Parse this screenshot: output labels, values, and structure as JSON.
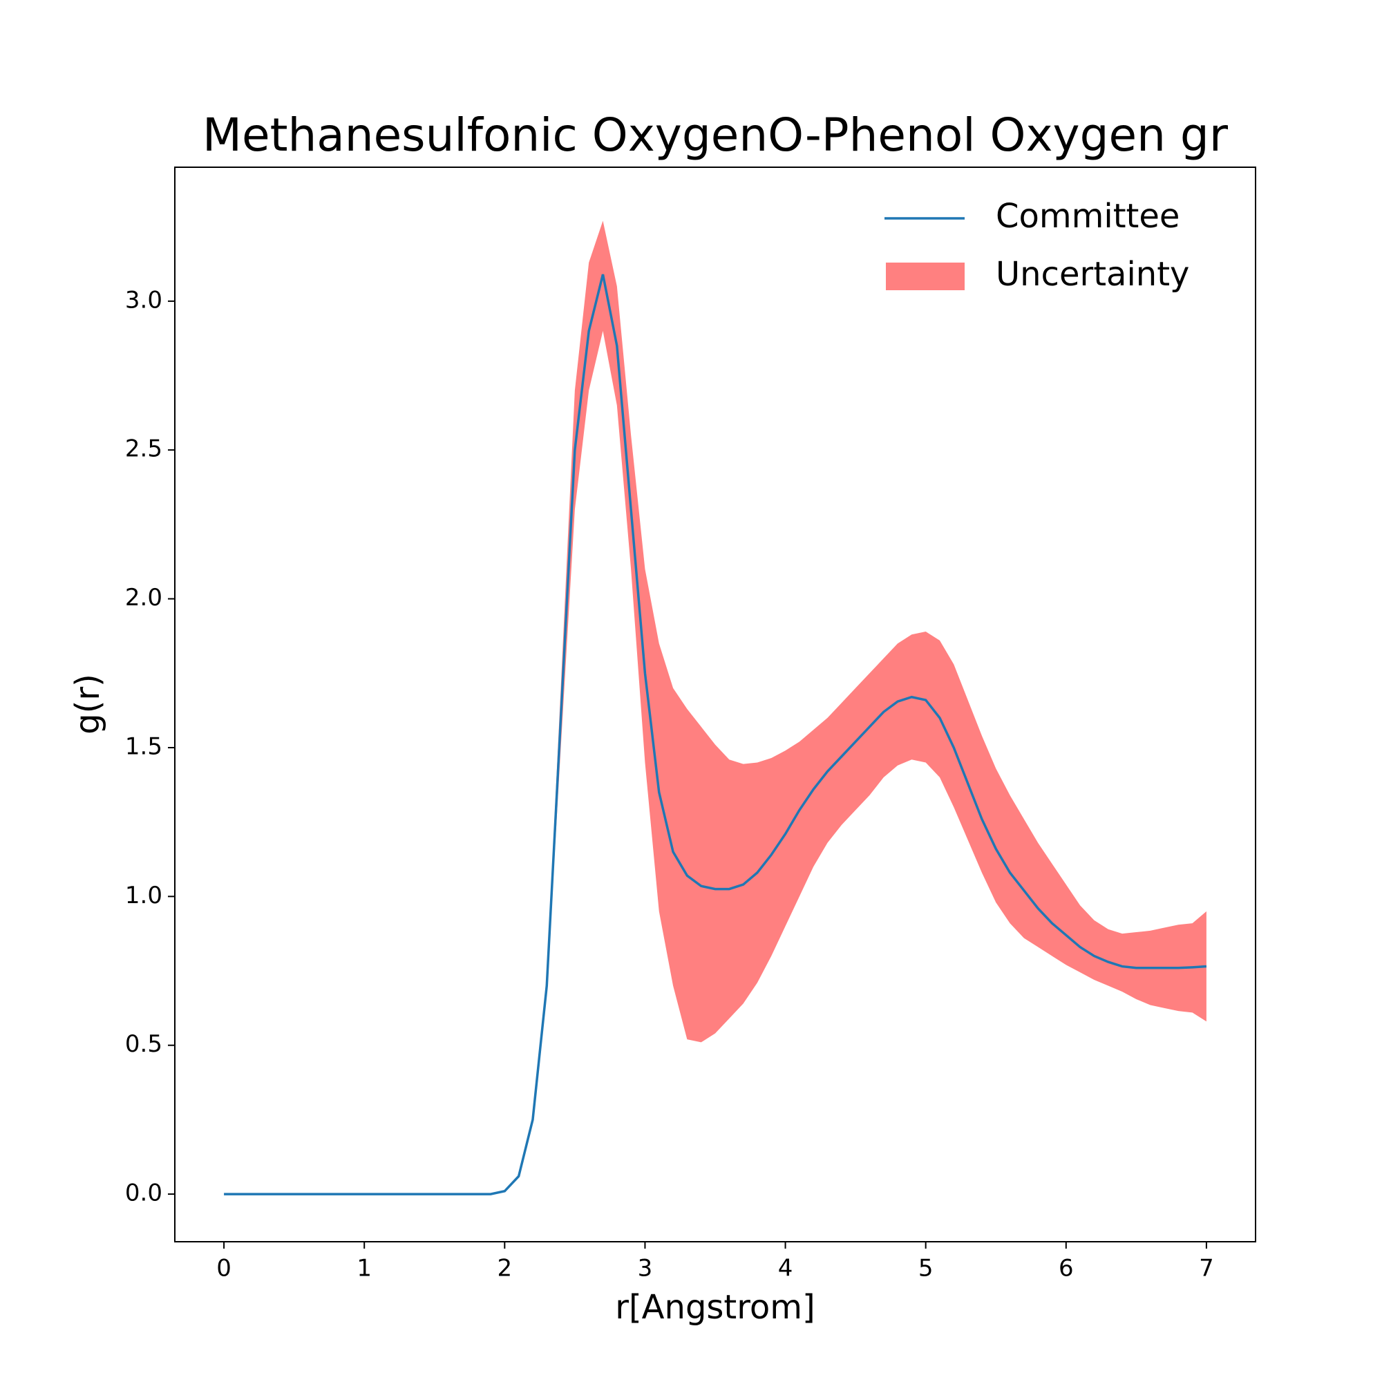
{
  "chart_data": {
    "type": "line",
    "title": "Methanesulfonic OxygenO-Phenol Oxygen gr",
    "x_label": "r[Angstrom]",
    "y_label": "g(r)",
    "x": [
      0,
      0.1,
      0.2,
      0.3,
      0.4,
      0.5,
      0.6,
      0.7,
      0.8,
      0.9,
      1,
      1.1,
      1.2,
      1.3,
      1.4,
      1.5,
      1.6,
      1.7,
      1.8,
      1.9,
      2,
      2.1,
      2.2,
      2.3,
      2.4,
      2.5,
      2.6,
      2.7,
      2.8,
      2.9,
      3,
      3.1,
      3.2,
      3.3,
      3.4,
      3.5,
      3.6,
      3.7,
      3.8,
      3.9,
      4,
      4.1,
      4.2,
      4.3,
      4.4,
      4.5,
      4.6,
      4.7,
      4.8,
      4.9,
      5,
      5.1,
      5.2,
      5.3,
      5.4,
      5.5,
      5.6,
      5.7,
      5.8,
      5.9,
      6,
      6.1,
      6.2,
      6.3,
      6.4,
      6.5,
      6.6,
      6.7,
      6.8,
      6.9,
      7
    ],
    "series": [
      {
        "name": "Committee",
        "color": "#1f77b4",
        "values": [
          0,
          0,
          0,
          0,
          0,
          0,
          0,
          0,
          0,
          0,
          0,
          0,
          0,
          0,
          0,
          0,
          0,
          0,
          0,
          0,
          0.01,
          0.06,
          0.25,
          0.7,
          1.6,
          2.5,
          2.9,
          3.09,
          2.85,
          2.3,
          1.75,
          1.35,
          1.15,
          1.07,
          1.035,
          1.025,
          1.025,
          1.04,
          1.08,
          1.14,
          1.21,
          1.29,
          1.36,
          1.42,
          1.47,
          1.52,
          1.57,
          1.62,
          1.655,
          1.67,
          1.66,
          1.6,
          1.5,
          1.38,
          1.26,
          1.16,
          1.08,
          1.02,
          0.96,
          0.91,
          0.87,
          0.83,
          0.8,
          0.78,
          0.765,
          0.76,
          0.76,
          0.76,
          0.76,
          0.762,
          0.765
        ]
      },
      {
        "name": "Uncertainty",
        "color": "#ff8080",
        "upper": [
          0,
          0,
          0,
          0,
          0,
          0,
          0,
          0,
          0,
          0,
          0,
          0,
          0,
          0,
          0,
          0,
          0,
          0,
          0,
          0,
          0.01,
          0.06,
          0.25,
          0.72,
          1.7,
          2.7,
          3.13,
          3.27,
          3.05,
          2.55,
          2.1,
          1.85,
          1.7,
          1.63,
          1.57,
          1.51,
          1.46,
          1.445,
          1.45,
          1.465,
          1.49,
          1.52,
          1.56,
          1.6,
          1.65,
          1.7,
          1.75,
          1.8,
          1.85,
          1.88,
          1.89,
          1.86,
          1.78,
          1.66,
          1.54,
          1.43,
          1.34,
          1.26,
          1.18,
          1.11,
          1.04,
          0.97,
          0.92,
          0.89,
          0.875,
          0.88,
          0.885,
          0.895,
          0.905,
          0.91,
          0.95
        ],
        "lower": [
          0,
          0,
          0,
          0,
          0,
          0,
          0,
          0,
          0,
          0,
          0,
          0,
          0,
          0,
          0,
          0,
          0,
          0,
          0,
          0,
          0.01,
          0.06,
          0.25,
          0.68,
          1.5,
          2.3,
          2.7,
          2.9,
          2.65,
          2.1,
          1.45,
          0.95,
          0.7,
          0.52,
          0.51,
          0.54,
          0.59,
          0.64,
          0.71,
          0.8,
          0.9,
          1.0,
          1.1,
          1.18,
          1.24,
          1.29,
          1.34,
          1.4,
          1.44,
          1.46,
          1.45,
          1.4,
          1.3,
          1.19,
          1.08,
          0.98,
          0.91,
          0.86,
          0.83,
          0.8,
          0.77,
          0.745,
          0.72,
          0.7,
          0.68,
          0.655,
          0.635,
          0.625,
          0.615,
          0.61,
          0.58
        ]
      }
    ],
    "xlim": [
      -0.35,
      7.35
    ],
    "ylim": [
      -0.16,
      3.45
    ],
    "xticks": [
      0,
      1,
      2,
      3,
      4,
      5,
      6,
      7
    ],
    "yticks": [
      {
        "value": 0,
        "label": "0.0"
      },
      {
        "value": 0.5,
        "label": "0.5"
      },
      {
        "value": 1,
        "label": "1.0"
      },
      {
        "value": 1.5,
        "label": "1.5"
      },
      {
        "value": 2,
        "label": "2.0"
      },
      {
        "value": 2.5,
        "label": "2.5"
      },
      {
        "value": 3,
        "label": "3.0"
      }
    ],
    "legend": "upper right"
  }
}
